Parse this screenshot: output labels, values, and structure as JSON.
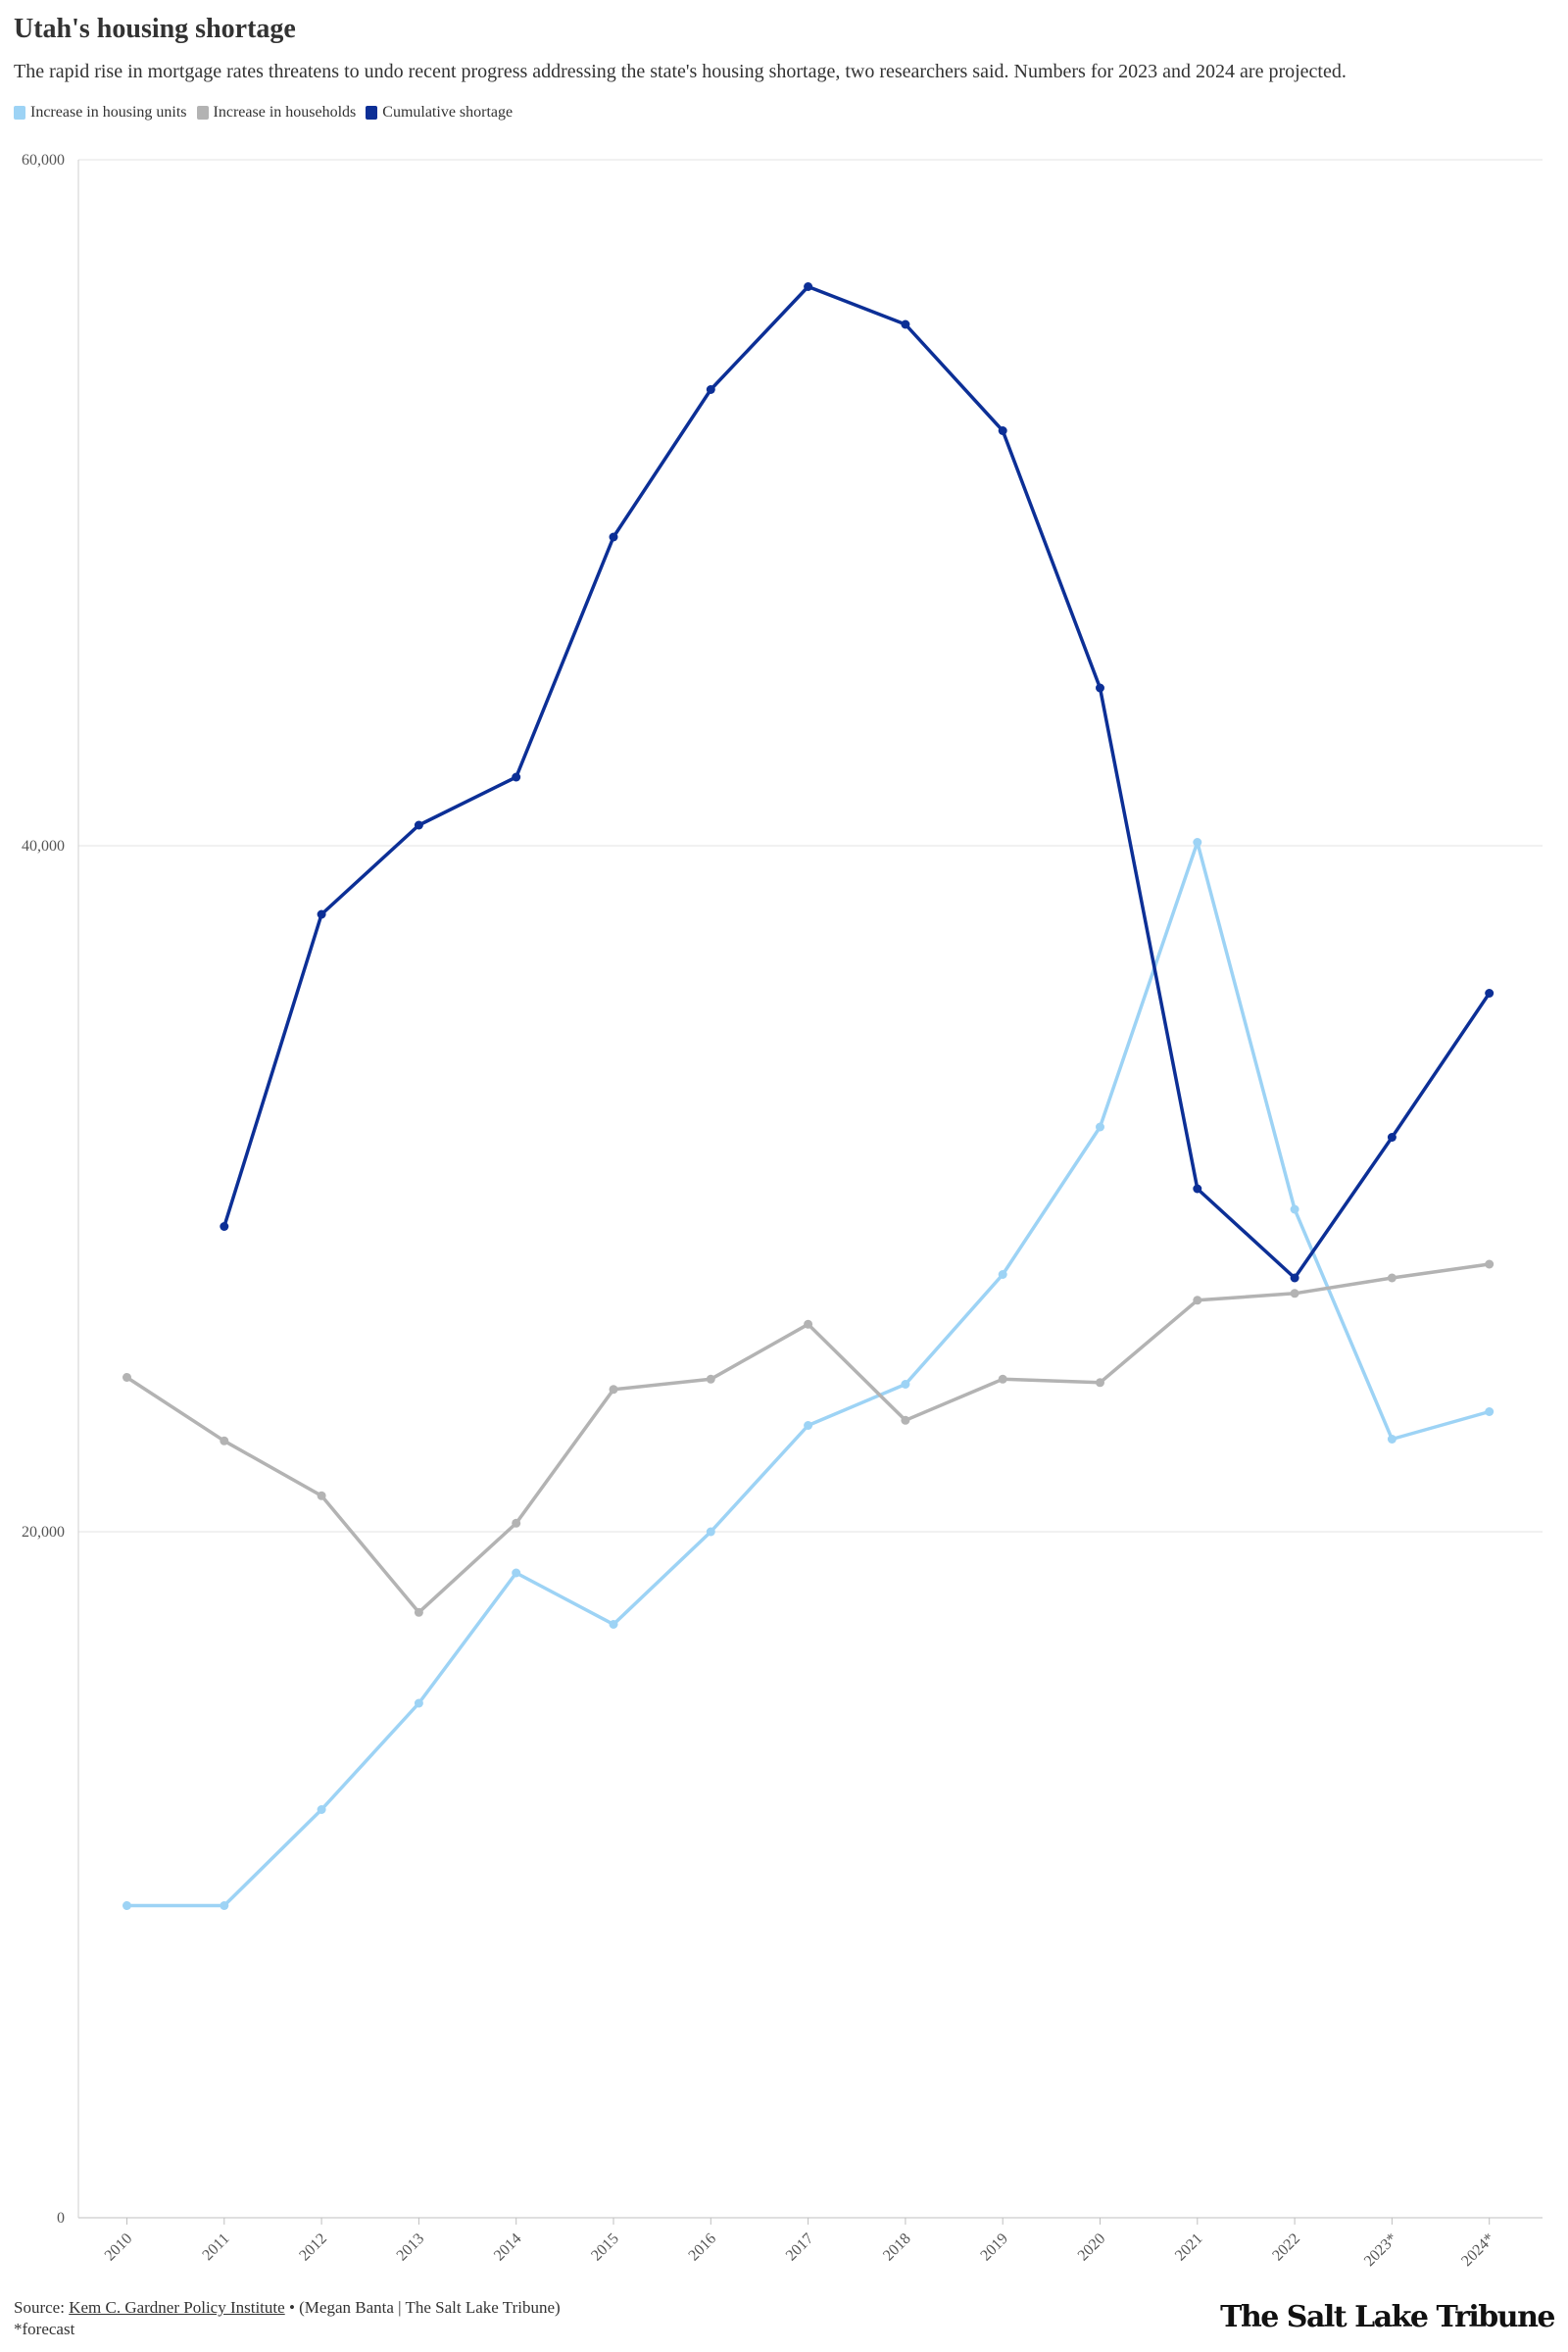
{
  "header": {
    "title": "Utah's housing shortage",
    "subtitle": "The rapid rise in mortgage rates threatens to undo recent progress addressing the state's housing shortage, two researchers said. Numbers for 2023 and 2024 are projected."
  },
  "legend": [
    {
      "label": "Increase in housing units",
      "color": "#9dd3f5"
    },
    {
      "label": "Increase in households",
      "color": "#b3b3b3"
    },
    {
      "label": "Cumulative shortage",
      "color": "#0c2f96"
    }
  ],
  "chart_data": {
    "type": "line",
    "title": "Utah's housing shortage",
    "subtitle": "The rapid rise in mortgage rates threatens to undo recent progress addressing the state's housing shortage, two researchers said. Numbers for 2023 and 2024 are projected.",
    "categories": [
      "2010",
      "2011",
      "2012",
      "2013",
      "2014",
      "2015",
      "2016",
      "2017",
      "2018",
      "2019",
      "2020",
      "2021",
      "2022",
      "2023*",
      "2024*"
    ],
    "series": [
      {
        "name": "Increase in housing units",
        "color": "#9dd3f5",
        "values": [
          9100,
          9100,
          11900,
          15000,
          18800,
          17300,
          20000,
          23100,
          24300,
          27500,
          31800,
          40100,
          29400,
          22700,
          23500
        ]
      },
      {
        "name": "Increase in households",
        "color": "#b3b3b3",
        "values": [
          24500,
          22650,
          21050,
          17650,
          20250,
          24150,
          24450,
          26050,
          23250,
          24450,
          24350,
          26750,
          26950,
          27400,
          27800
        ]
      },
      {
        "name": "Cumulative shortage",
        "color": "#0c2f96",
        "values": [
          null,
          28900,
          38000,
          40600,
          42000,
          49000,
          53300,
          56300,
          55200,
          52100,
          44600,
          30000,
          27400,
          31500,
          35700
        ]
      }
    ],
    "y_ticks": [
      "60,000",
      "40,000",
      "20,000",
      "0"
    ],
    "ylim": [
      0,
      60000
    ],
    "xlabel": "",
    "ylabel": "",
    "grid": true,
    "legend_position": "top-left"
  },
  "footer": {
    "source_prefix": "Source: ",
    "source_link": "Kem C. Gardner Policy Institute",
    "source_suffix": " • (Megan Banta | The Salt Lake Tribune)",
    "note": "*forecast"
  },
  "logo": "The Salt Lake Tribune"
}
